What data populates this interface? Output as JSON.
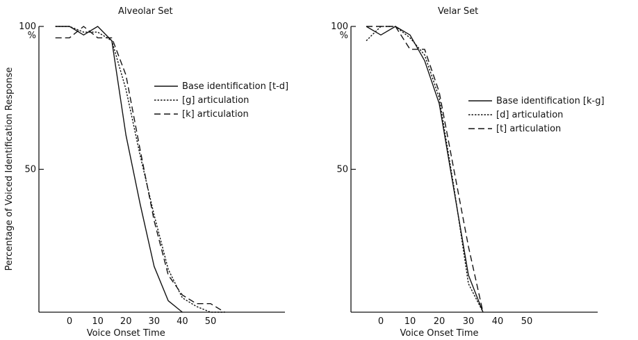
{
  "ylabel": "Percentage of Voiced Identification Response",
  "chart_data": [
    {
      "type": "line",
      "title": "Alveolar Set",
      "xlabel": "Voice Onset Time",
      "ylabel": "Percentage of Voiced Identification Response",
      "xlim": [
        -10,
        80
      ],
      "ylim": [
        0,
        100
      ],
      "x_ticks": [
        "0",
        "10",
        "20",
        "30",
        "40",
        "50"
      ],
      "y_ticks": [
        "100",
        "50"
      ],
      "y_unit": "%",
      "grid": false,
      "legend_position": "upper-right",
      "series": [
        {
          "name": "Base identification [t-d]",
          "style": "solid",
          "x": [
            -5,
            0,
            5,
            10,
            15,
            20,
            25,
            30,
            35,
            40
          ],
          "y": [
            100,
            100,
            97,
            100,
            95,
            62,
            38,
            16,
            4,
            0
          ]
        },
        {
          "name": "[g] articulation",
          "style": "dotted",
          "x": [
            -5,
            0,
            5,
            10,
            15,
            20,
            25,
            30,
            35,
            40,
            45,
            50,
            55
          ],
          "y": [
            100,
            100,
            98,
            98,
            95,
            78,
            55,
            34,
            15,
            5,
            2,
            0,
            0
          ]
        },
        {
          "name": "[k] articulation",
          "style": "dashed",
          "x": [
            -5,
            0,
            5,
            10,
            15,
            20,
            25,
            30,
            35,
            40,
            45,
            50,
            55
          ],
          "y": [
            96,
            96,
            100,
            96,
            96,
            83,
            57,
            32,
            13,
            6,
            3,
            3,
            0
          ]
        }
      ]
    },
    {
      "type": "line",
      "title": "Velar Set",
      "xlabel": "Voice Onset Time",
      "ylabel": "",
      "xlim": [
        -10,
        80
      ],
      "ylim": [
        0,
        100
      ],
      "x_ticks": [
        "0",
        "10",
        "20",
        "30",
        "40",
        "50"
      ],
      "y_ticks": [
        "100",
        "50"
      ],
      "y_unit": "%",
      "grid": false,
      "legend_position": "upper-right",
      "series": [
        {
          "name": "Base identification [k-g]",
          "style": "solid",
          "x": [
            -5,
            0,
            5,
            10,
            15,
            20,
            25,
            30,
            35
          ],
          "y": [
            100,
            97,
            100,
            97,
            88,
            73,
            43,
            13,
            0
          ]
        },
        {
          "name": "[d] articulation",
          "style": "dotted",
          "x": [
            -5,
            0,
            5,
            10,
            15,
            20,
            25,
            30,
            35
          ],
          "y": [
            95,
            100,
            100,
            96,
            90,
            75,
            44,
            10,
            0
          ]
        },
        {
          "name": "[t] articulation",
          "style": "dashed",
          "x": [
            -5,
            0,
            5,
            10,
            15,
            20,
            25,
            30,
            35
          ],
          "y": [
            100,
            100,
            100,
            92,
            92,
            77,
            50,
            23,
            0
          ]
        }
      ]
    }
  ]
}
